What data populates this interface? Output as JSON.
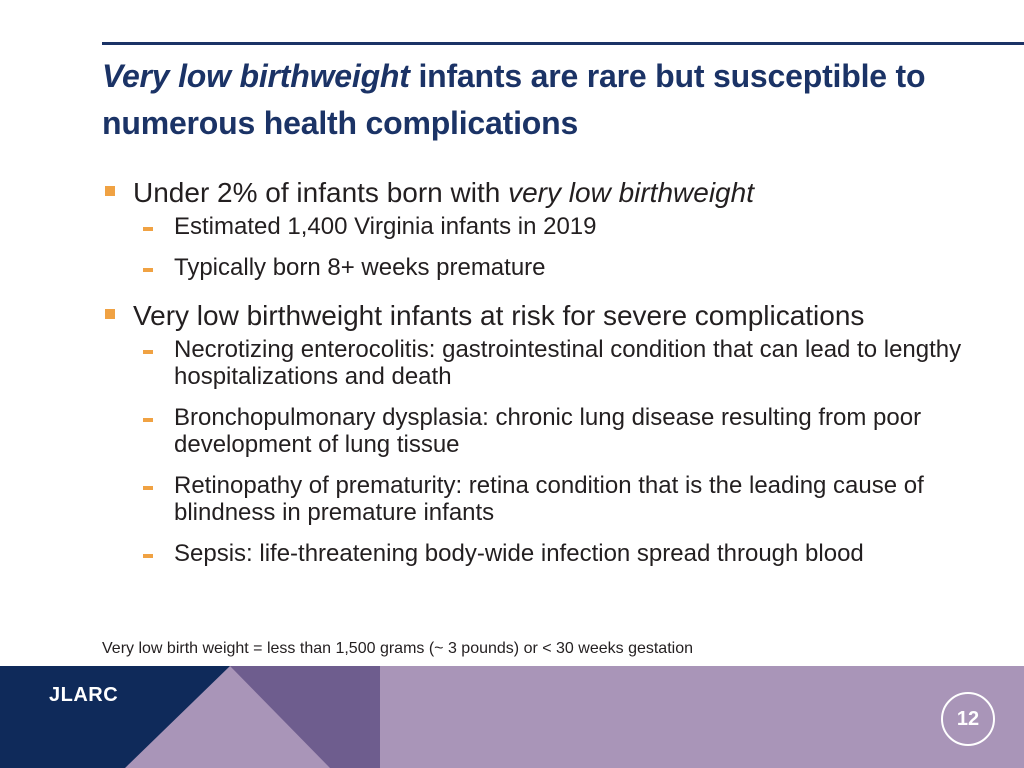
{
  "title": {
    "italic": "Very low birthweight",
    "rest": " infants are rare but susceptible to numerous health complications"
  },
  "bullets": [
    {
      "text_pre": "Under 2% of infants born with ",
      "text_em": "very low birthweight",
      "sub": [
        "Estimated 1,400 Virginia infants in 2019",
        "Typically born 8+ weeks premature"
      ]
    },
    {
      "text_pre": "Very low birthweight infants at risk for severe complications",
      "text_em": "",
      "sub": [
        "Necrotizing enterocolitis: gastrointestinal condition that can lead to lengthy hospitalizations and death",
        "Bronchopulmonary dysplasia: chronic lung disease resulting from poor development of lung tissue",
        "Retinopathy of prematurity: retina condition that is the leading cause of blindness in premature infants",
        "Sepsis: life-threatening body-wide infection spread through blood"
      ]
    }
  ],
  "footnote": "Very low birth weight = less than 1,500 grams (~ 3 pounds) or < 30 weeks gestation",
  "footer": {
    "brand": "JLARC",
    "page_number": "12"
  },
  "colors": {
    "title": "#1b3366",
    "bullet_accent": "#f0a243",
    "footer_navy": "#0f2a5a",
    "footer_purple_dark": "#6e5d8e",
    "footer_purple_light": "#a995b8"
  }
}
